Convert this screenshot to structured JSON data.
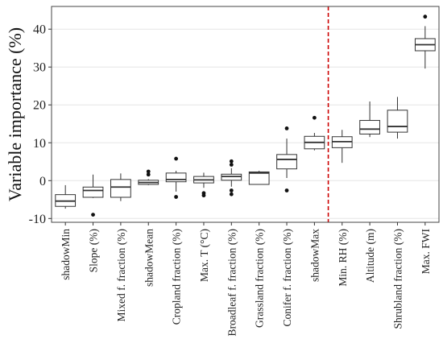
{
  "chart_data": {
    "type": "boxplot",
    "title": "",
    "xlabel": "",
    "ylabel": "Variable importance (%)",
    "ylim": [
      -11,
      46
    ],
    "yticks": [
      -10,
      0,
      10,
      20,
      30,
      40
    ],
    "grid": "horizontal",
    "categories": [
      "shadowMin",
      "Slope (%)",
      "Mixed f. fraction (%)",
      "shadowMean",
      "Cropland fraction (%)",
      "Max. T (°C)",
      "Broadleaf f. fraction (%)",
      "Grassland fraction (%)",
      "Conifer f. fraction (%)",
      "shadowMax",
      "Min. RH (%)",
      "Altitude (m)",
      "Shrubland fraction (%)",
      "Max. FWI"
    ],
    "boxes": [
      {
        "whisker_low": -7.4,
        "q1": -6.8,
        "median": -5.4,
        "q3": -3.7,
        "whisker_high": -1.2,
        "outliers": []
      },
      {
        "whisker_low": -4.6,
        "q1": -4.4,
        "median": -2.6,
        "q3": -1.7,
        "whisker_high": 1.6,
        "outliers": [
          -9.0
        ]
      },
      {
        "whisker_low": -5.4,
        "q1": -4.4,
        "median": -1.7,
        "q3": 0.3,
        "whisker_high": 1.9,
        "outliers": []
      },
      {
        "whisker_low": -1.2,
        "q1": -1.0,
        "median": -0.5,
        "q3": 0.1,
        "whisker_high": 0.4,
        "outliers": [
          1.6,
          2.4
        ]
      },
      {
        "whisker_low": -2.9,
        "q1": -0.3,
        "median": 0.3,
        "q3": 2.0,
        "whisker_high": 2.6,
        "outliers": [
          -4.3,
          5.8
        ]
      },
      {
        "whisker_low": -1.9,
        "q1": -0.6,
        "median": 0.2,
        "q3": 1.1,
        "whisker_high": 2.1,
        "outliers": [
          -3.3,
          -3.9
        ]
      },
      {
        "whisker_low": -1.6,
        "q1": 0.1,
        "median": 1.1,
        "q3": 1.7,
        "whisker_high": 3.3,
        "outliers": [
          -2.6,
          -3.6,
          4.2,
          5.1
        ]
      },
      {
        "whisker_low": -1.1,
        "q1": -1.0,
        "median": 2.0,
        "q3": 2.3,
        "whisker_high": 2.6,
        "outliers": []
      },
      {
        "whisker_low": 0.7,
        "q1": 3.1,
        "median": 5.6,
        "q3": 6.9,
        "whisker_high": 11.1,
        "outliers": [
          -2.6,
          13.8
        ]
      },
      {
        "whisker_low": 8.0,
        "q1": 8.4,
        "median": 10.1,
        "q3": 11.7,
        "whisker_high": 12.6,
        "outliers": [
          16.6
        ]
      },
      {
        "whisker_low": 4.7,
        "q1": 8.7,
        "median": 10.3,
        "q3": 11.6,
        "whisker_high": 13.4,
        "outliers": []
      },
      {
        "whisker_low": 11.5,
        "q1": 12.3,
        "median": 13.6,
        "q3": 15.9,
        "whisker_high": 20.9,
        "outliers": []
      },
      {
        "whisker_low": 11.1,
        "q1": 12.8,
        "median": 14.3,
        "q3": 18.6,
        "whisker_high": 22.1,
        "outliers": []
      },
      {
        "whisker_low": 29.6,
        "q1": 34.3,
        "median": 35.9,
        "q3": 37.5,
        "whisker_high": 40.8,
        "outliers": [
          43.3
        ]
      }
    ],
    "reference_line": {
      "between_categories": [
        "shadowMax",
        "Min. RH (%)"
      ],
      "style": "dashed",
      "color": "#cc0000"
    },
    "colors": {
      "box_fill": "#ffffff",
      "box_stroke": "#333333",
      "grid": "#e6e6e6",
      "outlier": "#111111",
      "panel_border": "#444444"
    }
  }
}
